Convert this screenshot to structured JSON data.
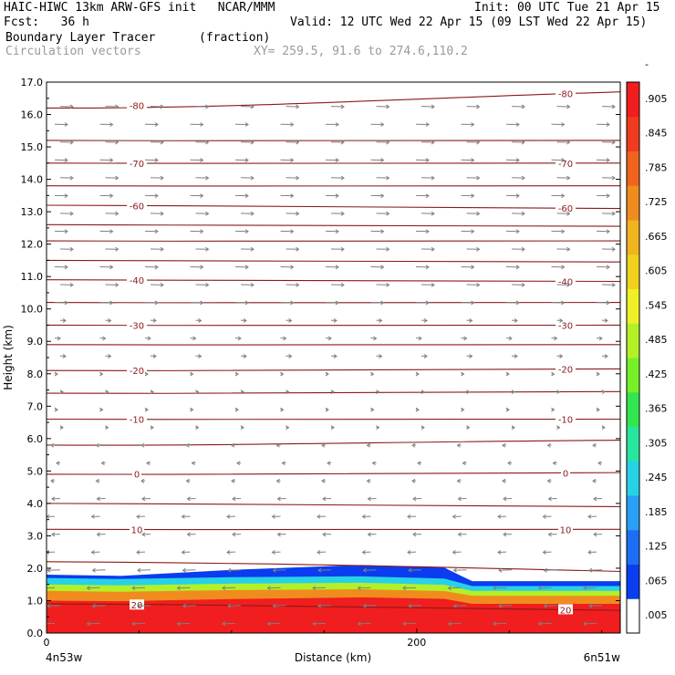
{
  "header": {
    "line1_left": "HAIC-HIWC 13km ARW-GFS init   NCAR/MMM",
    "line1_right": "Init: 00 UTC Tue 21 Apr 15",
    "line2_left": "Fcst:   36 h",
    "line2_right": "Valid: 12 UTC Wed 22 Apr 15 (09 LST Wed 22 Apr 15)",
    "line3_left": "Boundary Layer Tracer",
    "line3_mid": "(fraction)",
    "line4_left": "Circulation vectors",
    "line4_mid": "XY= 259.5, 91.6 to 274.6,110.2"
  },
  "colors": {
    "contour": "#8b1a1a",
    "vector": "#808080",
    "scale": [
      "#ffffff",
      "#0a3cf0",
      "#1e6ef5",
      "#28a0f5",
      "#28d2e6",
      "#28e6a0",
      "#32e650",
      "#78f028",
      "#b4f028",
      "#f0f028",
      "#f0d21e",
      "#f0b41e",
      "#f08c1e",
      "#f0641e",
      "#f03c1e",
      "#f01e1e"
    ]
  },
  "chart_data": {
    "type": "heatmap",
    "xlabel": "Distance (km)",
    "ylabel": "Height (km)",
    "xlim": [
      0,
      310
    ],
    "ylim": [
      0,
      17
    ],
    "x_ticks": [
      "0",
      "200"
    ],
    "x_end_labels": {
      "left": "4n53w",
      "right": "6n51w"
    },
    "y_ticks": [
      "0.0",
      "1.0",
      "2.0",
      "3.0",
      "4.0",
      "5.0",
      "6.0",
      "7.0",
      "8.0",
      "9.0",
      "10.0",
      "11.0",
      "12.0",
      "13.0",
      "14.0",
      "15.0",
      "16.0",
      "17.0"
    ],
    "colorbar_labels": [
      ".005",
      ".065",
      ".125",
      ".185",
      ".245",
      ".305",
      ".365",
      ".425",
      ".485",
      ".545",
      ".605",
      ".665",
      ".725",
      ".785",
      ".845",
      ".905",
      "-"
    ],
    "colorbar_thresholds": [
      0.005,
      0.065,
      0.125,
      0.185,
      0.245,
      0.305,
      0.365,
      0.425,
      0.485,
      0.545,
      0.605,
      0.665,
      0.725,
      0.785,
      0.845,
      0.905,
      0.965
    ],
    "tracer_layers": [
      {
        "value": 0.05,
        "top_left": 1.8,
        "top_mid": 2.1,
        "top_right": 1.6
      },
      {
        "value": 0.2,
        "top_left": 1.7,
        "top_mid": 1.75,
        "top_right": 1.45
      },
      {
        "value": 0.45,
        "top_left": 1.5,
        "top_mid": 1.55,
        "top_right": 1.3
      },
      {
        "value": 0.7,
        "top_left": 1.3,
        "top_mid": 1.35,
        "top_right": 1.15
      },
      {
        "value": 0.97,
        "top_left": 1.0,
        "top_mid": 1.1,
        "top_right": 0.9
      }
    ],
    "isotherm_levels": [
      "-80",
      "-70",
      "-60",
      "-40",
      "-30",
      "-20",
      "-10",
      "0",
      "10",
      "20"
    ],
    "isotherm_lines": [
      {
        "label": "20",
        "left": 0.9,
        "right": 0.7
      },
      {
        "label": "",
        "left": 2.2,
        "right": 1.9
      },
      {
        "label": "10",
        "left": 3.2,
        "right": 3.2
      },
      {
        "label": "",
        "left": 4.0,
        "right": 3.9
      },
      {
        "label": "0",
        "left": 4.9,
        "right": 4.95
      },
      {
        "label": "",
        "left": 5.8,
        "right": 5.95
      },
      {
        "label": "-10",
        "left": 6.6,
        "right": 6.6
      },
      {
        "label": "",
        "left": 7.4,
        "right": 7.45
      },
      {
        "label": "-20",
        "left": 8.1,
        "right": 8.15
      },
      {
        "label": "",
        "left": 8.9,
        "right": 8.9
      },
      {
        "label": "-30",
        "left": 9.5,
        "right": 9.5
      },
      {
        "label": "",
        "left": 10.2,
        "right": 10.2
      },
      {
        "label": "-40",
        "left": 10.9,
        "right": 10.85
      },
      {
        "label": "",
        "left": 11.5,
        "right": 11.45
      },
      {
        "label": "",
        "left": 12.1,
        "right": 12.1
      },
      {
        "label": "",
        "left": 12.6,
        "right": 12.55
      },
      {
        "label": "-60",
        "left": 13.2,
        "right": 13.1
      },
      {
        "label": "",
        "left": 13.8,
        "right": 13.8
      },
      {
        "label": "-70",
        "left": 14.5,
        "right": 14.5
      },
      {
        "label": "",
        "left": 15.2,
        "right": 15.2
      },
      {
        "label": "-80",
        "left": 16.2,
        "right": 16.7
      }
    ]
  }
}
